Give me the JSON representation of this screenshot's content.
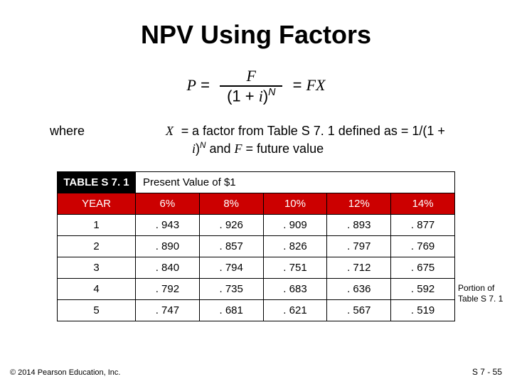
{
  "title": "NPV Using Factors",
  "formula": {
    "lhs_var": "P",
    "eq1": "=",
    "num_var": "F",
    "den_open": "(1 + ",
    "den_iv": "i",
    "den_close": ")",
    "den_exp": "N",
    "eq2": "=",
    "rhs": "FX"
  },
  "where": {
    "label": "where",
    "sym": "X",
    "eq": "=",
    "def_pre": "a factor from Table S 7. 1 defined as = 1/(1 + ",
    "def_i": "i",
    "def_mid": ")",
    "def_exp": "N",
    "def_post1": "  and  ",
    "def_F": "F",
    "def_post2": " = future value"
  },
  "table": {
    "tag": "TABLE S 7. 1",
    "pvtitle": "Present Value of $1",
    "columns": [
      "YEAR",
      "6%",
      "8%",
      "10%",
      "12%",
      "14%"
    ],
    "rows": [
      [
        "1",
        ". 943",
        ". 926",
        ". 909",
        ". 893",
        ". 877"
      ],
      [
        "2",
        ". 890",
        ". 857",
        ". 826",
        ". 797",
        ". 769"
      ],
      [
        "3",
        ". 840",
        ". 794",
        ". 751",
        ". 712",
        ". 675"
      ],
      [
        "4",
        ". 792",
        ". 735",
        ". 683",
        ". 636",
        ". 592"
      ],
      [
        "5",
        ". 747",
        ". 681",
        ". 621",
        ". 567",
        ". 519"
      ]
    ],
    "header_bg": "#cc0000",
    "header_fg": "#ffffff",
    "tag_bg": "#000000",
    "tag_fg": "#ffffff",
    "cell_bg": "#ffffff",
    "border_color": "#000000"
  },
  "side_note": "Portion of Table S 7. 1",
  "footer_left": "© 2014 Pearson Education, Inc.",
  "footer_right": "S 7 -  55"
}
